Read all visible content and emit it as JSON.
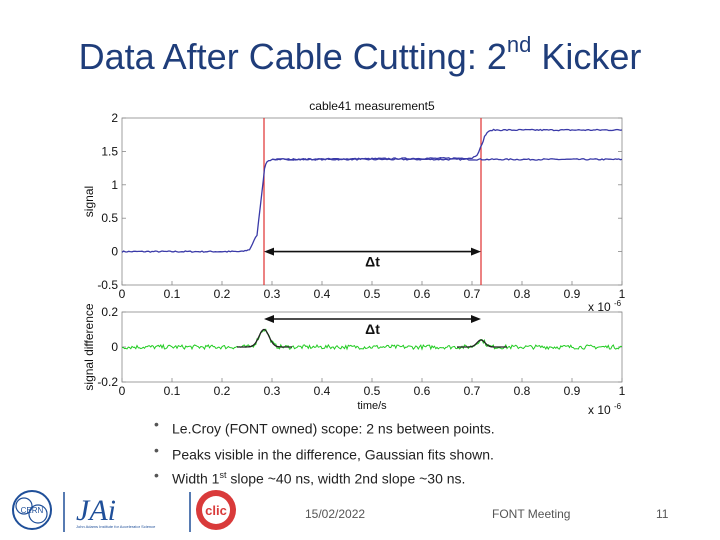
{
  "slide": {
    "title": "Data After Cable Cutting: 2",
    "title_sup": "nd",
    "title_end": " Kicker",
    "bullets": [
      {
        "pre": "Le.Croy (FONT owned) scope: 2 ns between points.",
        "sup": "",
        "post": ""
      },
      {
        "pre": "Peaks visible in the difference, Gaussian fits shown.",
        "sup": "",
        "post": ""
      },
      {
        "pre": "Width 1",
        "sup": "st",
        "post": " slope ~40 ns, width 2nd slope ~30 ns."
      }
    ],
    "footer": {
      "date": "15/02/2022",
      "meeting": "FONT Meeting",
      "page": "11"
    },
    "logos": {
      "cern": "CERN",
      "jai": "JAi",
      "jai_sub": "John Adams Institute for Accelerator Science",
      "clic": "clic"
    }
  },
  "chart_data": [
    {
      "type": "line",
      "title": "cable41 measurement5",
      "xlabel": "",
      "ylabel": "signal",
      "xlim": [
        0,
        1
      ],
      "ylim": [
        -0.5,
        2
      ],
      "xticks": [
        "0",
        "0.1",
        "0.2",
        "0.3",
        "0.4",
        "0.5",
        "0.6",
        "0.7",
        "0.8",
        "0.9",
        "1"
      ],
      "yticks": [
        "2",
        "1.5",
        "1",
        "0.5",
        "0",
        "-0.5"
      ],
      "x_multiplier": "x 10",
      "x_multiplier_exp": "-6",
      "series": [
        {
          "name": "",
          "color": "#3a3aa8",
          "x": [
            0,
            0.24,
            0.255,
            0.27,
            0.28,
            0.285,
            0.29,
            0.3,
            1.0
          ],
          "y": [
            0,
            0,
            0.03,
            0.25,
            0.9,
            1.25,
            1.35,
            1.38,
            1.38
          ]
        },
        {
          "name": "",
          "color": "#3a3aa8",
          "x": [
            0.3,
            0.7,
            0.71,
            0.72,
            0.725,
            0.73,
            0.74,
            1.0
          ],
          "y": [
            1.38,
            1.4,
            1.45,
            1.6,
            1.72,
            1.78,
            1.82,
            1.82
          ]
        }
      ],
      "annotations": [
        {
          "type": "vline",
          "x": 0.284,
          "color": "#e03030"
        },
        {
          "type": "vline",
          "x": 0.718,
          "color": "#e03030"
        },
        {
          "type": "double-arrow",
          "x1": 0.284,
          "x2": 0.718,
          "y": 0,
          "label": "Δt"
        }
      ]
    },
    {
      "type": "line",
      "title": "",
      "xlabel": "time/s",
      "ylabel": "signal difference",
      "xlim": [
        0,
        1
      ],
      "ylim": [
        -0.2,
        0.2
      ],
      "xticks": [
        "0",
        "0.1",
        "0.2",
        "0.3",
        "0.4",
        "0.5",
        "0.6",
        "0.7",
        "0.8",
        "0.9",
        "1"
      ],
      "yticks": [
        "0.2",
        "0",
        "-0.2"
      ],
      "x_multiplier": "x 10",
      "x_multiplier_exp": "-6",
      "series": [
        {
          "name": "",
          "color": "#22cc22",
          "noise": 0.012,
          "peaks": [
            {
              "center": 0.284,
              "sigma": 0.01,
              "amp": 0.1
            },
            {
              "center": 0.718,
              "sigma": 0.008,
              "amp": 0.04
            }
          ],
          "xrange": [
            0,
            1
          ]
        },
        {
          "name": "",
          "color": "#222222",
          "noise": 0,
          "peaks": [
            {
              "center": 0.284,
              "sigma": 0.01,
              "amp": 0.1
            }
          ],
          "xrange": [
            0.23,
            0.34
          ]
        },
        {
          "name": "",
          "color": "#222222",
          "noise": 0,
          "peaks": [
            {
              "center": 0.718,
              "sigma": 0.008,
              "amp": 0.04
            }
          ],
          "xrange": [
            0.67,
            0.77
          ]
        }
      ],
      "annotations": [
        {
          "type": "double-arrow",
          "x1": 0.284,
          "x2": 0.718,
          "y": 0.16,
          "label": "Δt"
        }
      ]
    }
  ]
}
